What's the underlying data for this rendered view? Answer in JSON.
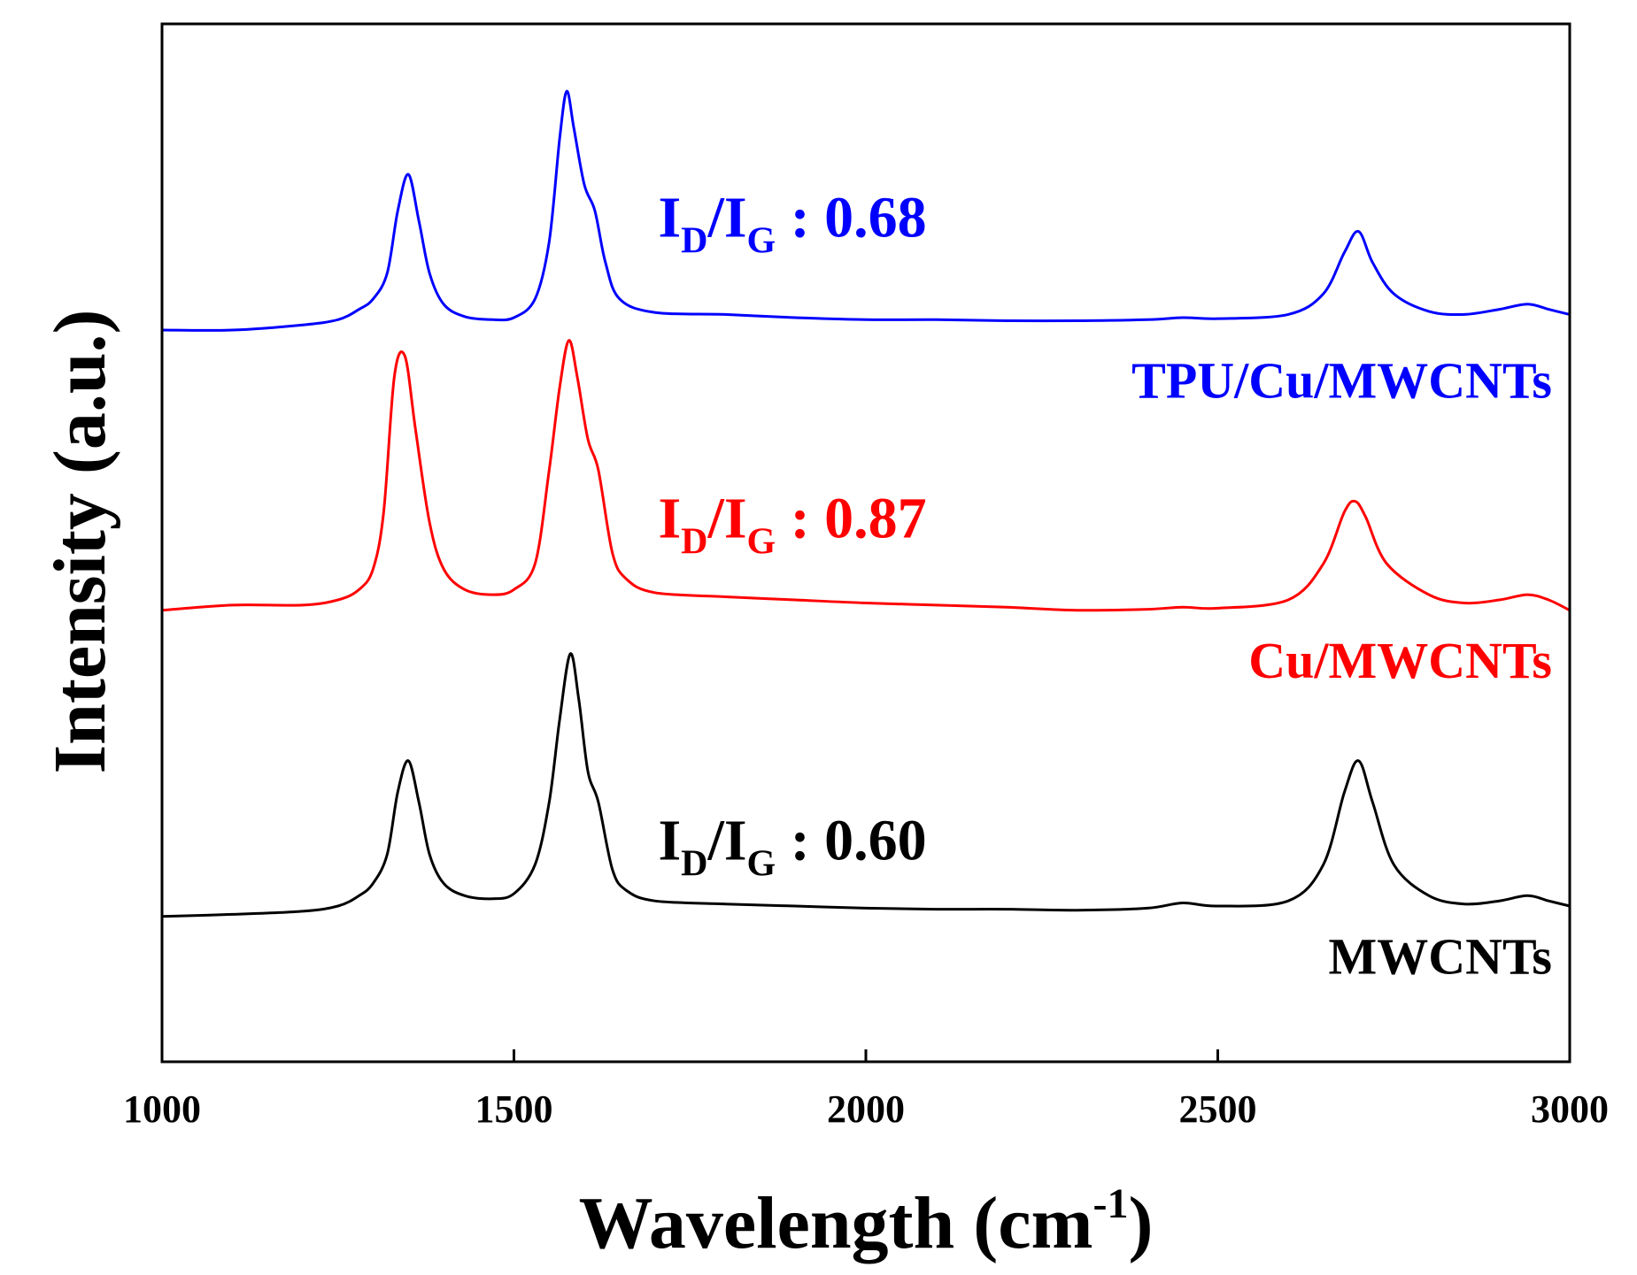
{
  "chart_data": {
    "type": "line",
    "title": "",
    "xlabel": "Wavelength (cm",
    "xlabel_sup": "-1",
    "xlabel_tail": ")",
    "ylabel": "Intensity (a.u.)",
    "xlim": [
      1000,
      3000
    ],
    "ylim": [
      0,
      10
    ],
    "grid": false,
    "y_ticks_shown": false,
    "x_ticks": [
      1000,
      1500,
      2000,
      2500,
      3000
    ],
    "x_tick_labels": [
      "1000",
      "1500",
      "2000",
      "2500",
      "3000"
    ],
    "ratio_prefix": "I",
    "ratio_sub_d": "D",
    "ratio_slash": "/I",
    "ratio_sub_g": "G",
    "series": [
      {
        "name": "TPU/Cu/MWCNTs",
        "color": "#0000ff",
        "ratio_value": " : 0.68",
        "points": [
          [
            1000,
            7.05
          ],
          [
            1100,
            7.05
          ],
          [
            1200,
            7.1
          ],
          [
            1250,
            7.15
          ],
          [
            1280,
            7.25
          ],
          [
            1300,
            7.35
          ],
          [
            1320,
            7.6
          ],
          [
            1335,
            8.2
          ],
          [
            1350,
            8.55
          ],
          [
            1365,
            8.1
          ],
          [
            1380,
            7.6
          ],
          [
            1400,
            7.3
          ],
          [
            1430,
            7.18
          ],
          [
            1470,
            7.15
          ],
          [
            1500,
            7.17
          ],
          [
            1530,
            7.35
          ],
          [
            1550,
            7.9
          ],
          [
            1565,
            8.9
          ],
          [
            1575,
            9.35
          ],
          [
            1585,
            9.0
          ],
          [
            1600,
            8.45
          ],
          [
            1615,
            8.2
          ],
          [
            1630,
            7.7
          ],
          [
            1650,
            7.35
          ],
          [
            1700,
            7.22
          ],
          [
            1800,
            7.2
          ],
          [
            1900,
            7.17
          ],
          [
            2000,
            7.15
          ],
          [
            2100,
            7.15
          ],
          [
            2200,
            7.14
          ],
          [
            2300,
            7.14
          ],
          [
            2400,
            7.15
          ],
          [
            2450,
            7.17
          ],
          [
            2500,
            7.16
          ],
          [
            2600,
            7.2
          ],
          [
            2650,
            7.4
          ],
          [
            2680,
            7.8
          ],
          [
            2700,
            8.0
          ],
          [
            2720,
            7.7
          ],
          [
            2750,
            7.4
          ],
          [
            2800,
            7.23
          ],
          [
            2850,
            7.2
          ],
          [
            2900,
            7.25
          ],
          [
            2940,
            7.3
          ],
          [
            2970,
            7.25
          ],
          [
            3000,
            7.2
          ]
        ]
      },
      {
        "name": "Cu/MWCNTs",
        "color": "#ff0000",
        "ratio_value": " : 0.87",
        "points": [
          [
            1000,
            4.35
          ],
          [
            1100,
            4.4
          ],
          [
            1200,
            4.4
          ],
          [
            1250,
            4.45
          ],
          [
            1280,
            4.55
          ],
          [
            1300,
            4.75
          ],
          [
            1315,
            5.3
          ],
          [
            1330,
            6.6
          ],
          [
            1345,
            6.8
          ],
          [
            1360,
            6.1
          ],
          [
            1380,
            5.2
          ],
          [
            1400,
            4.75
          ],
          [
            1430,
            4.55
          ],
          [
            1470,
            4.5
          ],
          [
            1500,
            4.55
          ],
          [
            1530,
            4.8
          ],
          [
            1550,
            5.7
          ],
          [
            1565,
            6.5
          ],
          [
            1578,
            6.95
          ],
          [
            1590,
            6.6
          ],
          [
            1605,
            6.0
          ],
          [
            1620,
            5.7
          ],
          [
            1640,
            4.9
          ],
          [
            1660,
            4.65
          ],
          [
            1700,
            4.52
          ],
          [
            1800,
            4.48
          ],
          [
            1900,
            4.45
          ],
          [
            2000,
            4.42
          ],
          [
            2100,
            4.4
          ],
          [
            2200,
            4.38
          ],
          [
            2300,
            4.35
          ],
          [
            2400,
            4.36
          ],
          [
            2450,
            4.38
          ],
          [
            2500,
            4.37
          ],
          [
            2600,
            4.45
          ],
          [
            2650,
            4.8
          ],
          [
            2680,
            5.3
          ],
          [
            2695,
            5.4
          ],
          [
            2710,
            5.25
          ],
          [
            2740,
            4.8
          ],
          [
            2800,
            4.5
          ],
          [
            2850,
            4.42
          ],
          [
            2900,
            4.45
          ],
          [
            2940,
            4.5
          ],
          [
            2970,
            4.45
          ],
          [
            3000,
            4.35
          ]
        ]
      },
      {
        "name": "MWCNTs",
        "color": "#000000",
        "ratio_value": " : 0.60",
        "points": [
          [
            1000,
            1.4
          ],
          [
            1100,
            1.42
          ],
          [
            1200,
            1.45
          ],
          [
            1250,
            1.5
          ],
          [
            1280,
            1.6
          ],
          [
            1300,
            1.72
          ],
          [
            1320,
            2.0
          ],
          [
            1335,
            2.6
          ],
          [
            1350,
            2.9
          ],
          [
            1365,
            2.5
          ],
          [
            1380,
            2.0
          ],
          [
            1400,
            1.72
          ],
          [
            1430,
            1.6
          ],
          [
            1470,
            1.57
          ],
          [
            1500,
            1.62
          ],
          [
            1530,
            1.9
          ],
          [
            1550,
            2.5
          ],
          [
            1565,
            3.3
          ],
          [
            1580,
            3.93
          ],
          [
            1592,
            3.5
          ],
          [
            1605,
            2.8
          ],
          [
            1620,
            2.5
          ],
          [
            1640,
            1.85
          ],
          [
            1660,
            1.65
          ],
          [
            1700,
            1.55
          ],
          [
            1800,
            1.52
          ],
          [
            1900,
            1.5
          ],
          [
            2000,
            1.48
          ],
          [
            2100,
            1.47
          ],
          [
            2200,
            1.47
          ],
          [
            2300,
            1.46
          ],
          [
            2400,
            1.48
          ],
          [
            2450,
            1.53
          ],
          [
            2500,
            1.5
          ],
          [
            2600,
            1.55
          ],
          [
            2650,
            1.9
          ],
          [
            2680,
            2.6
          ],
          [
            2700,
            2.9
          ],
          [
            2720,
            2.5
          ],
          [
            2750,
            1.9
          ],
          [
            2800,
            1.6
          ],
          [
            2850,
            1.52
          ],
          [
            2900,
            1.55
          ],
          [
            2940,
            1.6
          ],
          [
            2970,
            1.55
          ],
          [
            3000,
            1.5
          ]
        ]
      }
    ]
  }
}
